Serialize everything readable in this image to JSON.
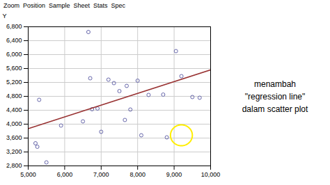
{
  "chart_data": {
    "type": "scatter",
    "ylabel": "Y",
    "annotations": [
      "Zoom  Position  Sample  Sheet  Stats  Spec",
      "menambah\n\"regression line\"\ndalam scatter plot"
    ],
    "series": [
      {
        "type": "scatter",
        "marker": "circle",
        "color": "#6666aa",
        "x": [
          5200,
          5250,
          5300,
          5500,
          5900,
          6500,
          6650,
          6700,
          6750,
          6900,
          7000,
          7200,
          7350,
          7500,
          7650,
          7700,
          7800,
          8000,
          8100,
          8300,
          8700,
          8800,
          9050,
          9200,
          9500,
          9700
        ],
        "values": [
          3450,
          3350,
          4700,
          2900,
          3960,
          4080,
          6650,
          5320,
          4430,
          4450,
          3780,
          5280,
          5180,
          4950,
          4120,
          5100,
          4420,
          5250,
          3680,
          4840,
          4850,
          3620,
          6100,
          5380,
          4780,
          4760
        ]
      },
      {
        "type": "line",
        "color": "#993333",
        "x": [
          5000,
          10000
        ],
        "values": [
          3870,
          5560
        ]
      }
    ],
    "circle": {
      "x": 9200,
      "y": 3680,
      "radius": 300,
      "color": "#ffee00"
    },
    "xlim": [
      5000,
      10000
    ],
    "ylim": [
      2800,
      6800
    ],
    "xticks": [
      {
        "value": 5000,
        "label": "5,000"
      },
      {
        "value": 6000,
        "label": "6,000"
      },
      {
        "value": 7000,
        "label": "7,000"
      },
      {
        "value": 8000,
        "label": "8,000"
      },
      {
        "value": 9000,
        "label": "9,000"
      },
      {
        "value": 10000,
        "label": "10,000"
      }
    ],
    "yticks": [
      {
        "value": 2800,
        "label": "2,800"
      },
      {
        "value": 3200,
        "label": "3,200"
      },
      {
        "value": 3600,
        "label": "3,600"
      },
      {
        "value": 4000,
        "label": "4,000"
      },
      {
        "value": 4400,
        "label": "4,400"
      },
      {
        "value": 4800,
        "label": "4,800"
      },
      {
        "value": 5200,
        "label": "5,200"
      },
      {
        "value": 5600,
        "label": "5,600"
      },
      {
        "value": 6000,
        "label": "6,000"
      },
      {
        "value": 6400,
        "label": "6,400"
      },
      {
        "value": 6800,
        "label": "6,800"
      }
    ],
    "grid": true
  }
}
